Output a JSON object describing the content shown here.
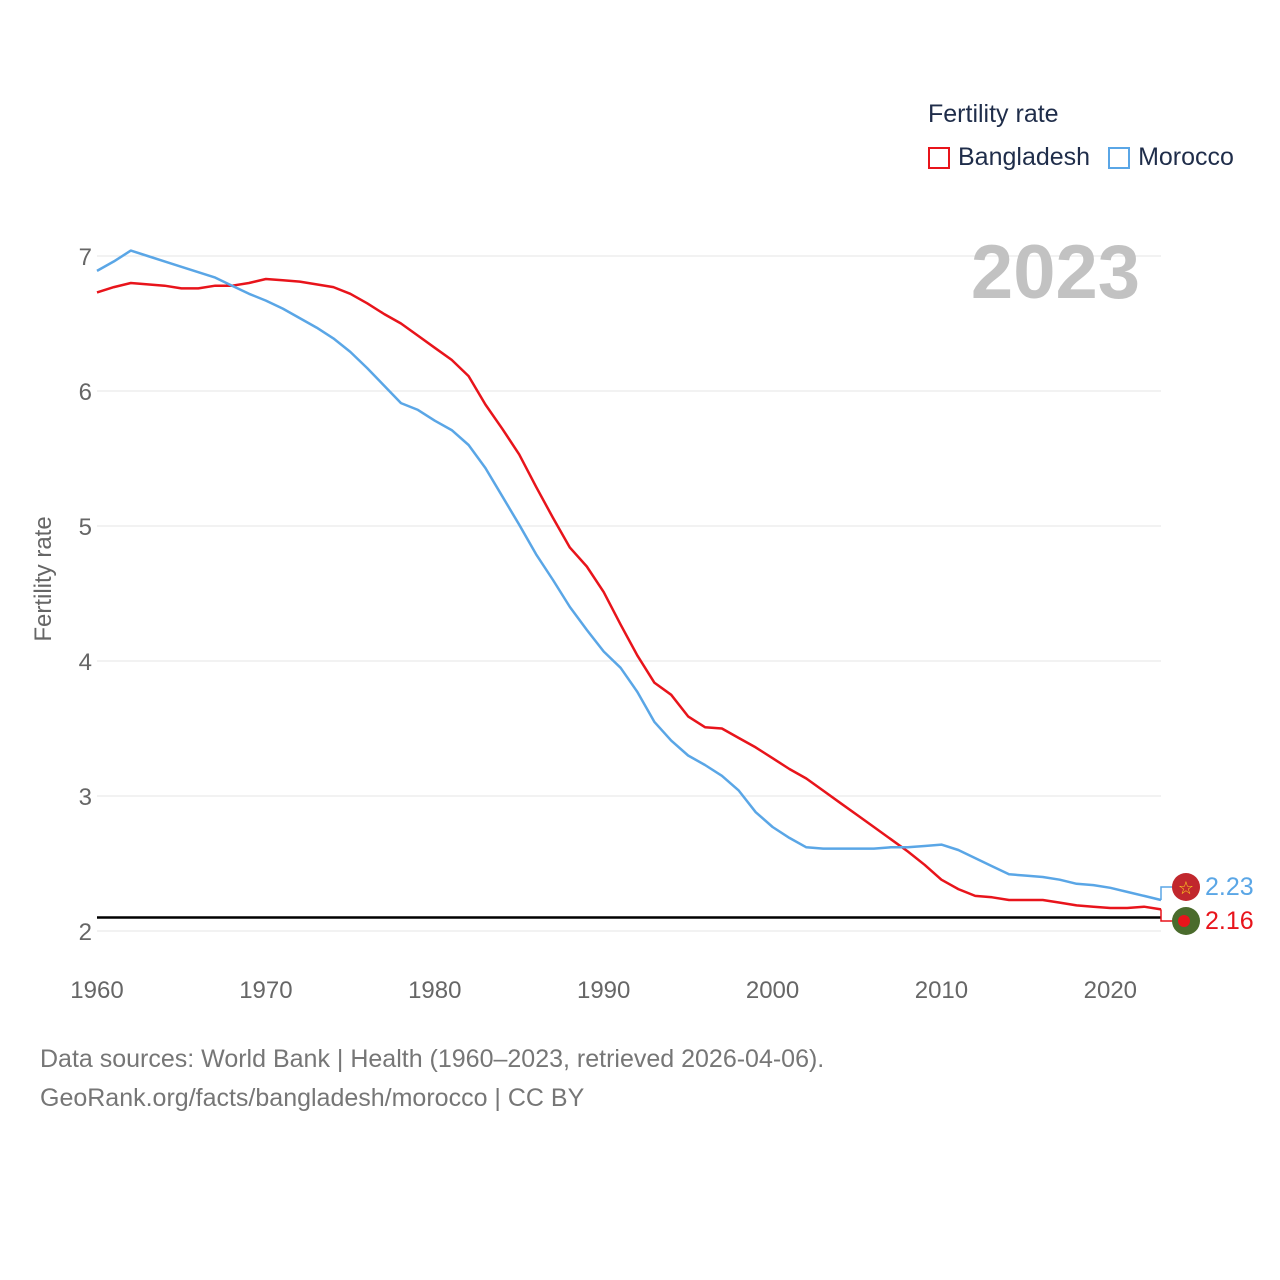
{
  "legend": {
    "title": "Fertility rate",
    "items": [
      {
        "label": "Bangladesh",
        "color": "#e8141b"
      },
      {
        "label": "Morocco",
        "color": "#5aa6e6"
      }
    ]
  },
  "source": {
    "line1": "Data sources: World Bank | Health (1960–2023, retrieved 2026-04-06).",
    "line2": "GeoRank.org/facts/bangladesh/morocco | CC BY"
  },
  "chart_data": {
    "type": "line",
    "title": "Fertility rate",
    "year_label": "2023",
    "xlabel": "",
    "ylabel": "Fertility rate",
    "xlim": [
      1960,
      2023
    ],
    "ylim": [
      2,
      7
    ],
    "xticks": [
      1960,
      1970,
      1980,
      1990,
      2000,
      2010,
      2020
    ],
    "yticks": [
      2,
      3,
      4,
      5,
      6,
      7
    ],
    "reference_line": 2.1,
    "reference_color": "#000000",
    "grid": true,
    "legend_position": "top-right",
    "x": [
      1960,
      1961,
      1962,
      1963,
      1964,
      1965,
      1966,
      1967,
      1968,
      1969,
      1970,
      1971,
      1972,
      1973,
      1974,
      1975,
      1976,
      1977,
      1978,
      1979,
      1980,
      1981,
      1982,
      1983,
      1984,
      1985,
      1986,
      1987,
      1988,
      1989,
      1990,
      1991,
      1992,
      1993,
      1994,
      1995,
      1996,
      1997,
      1998,
      1999,
      2000,
      2001,
      2002,
      2003,
      2004,
      2005,
      2006,
      2007,
      2008,
      2009,
      2010,
      2011,
      2012,
      2013,
      2014,
      2015,
      2016,
      2017,
      2018,
      2019,
      2020,
      2021,
      2022,
      2023
    ],
    "series": [
      {
        "name": "Bangladesh",
        "color": "#e8141b",
        "end_label": "2.16",
        "values": [
          6.73,
          6.77,
          6.8,
          6.79,
          6.78,
          6.76,
          6.76,
          6.78,
          6.78,
          6.8,
          6.83,
          6.82,
          6.81,
          6.79,
          6.77,
          6.72,
          6.65,
          6.57,
          6.5,
          6.41,
          6.32,
          6.23,
          6.11,
          5.9,
          5.72,
          5.53,
          5.29,
          5.06,
          4.84,
          4.7,
          4.51,
          4.27,
          4.04,
          3.84,
          3.75,
          3.59,
          3.51,
          3.5,
          3.43,
          3.36,
          3.28,
          3.2,
          3.13,
          3.04,
          2.95,
          2.86,
          2.77,
          2.68,
          2.59,
          2.49,
          2.38,
          2.31,
          2.26,
          2.25,
          2.23,
          2.23,
          2.23,
          2.21,
          2.19,
          2.18,
          2.17,
          2.17,
          2.18,
          2.16
        ]
      },
      {
        "name": "Morocco",
        "color": "#5aa6e6",
        "end_label": "2.23",
        "values": [
          6.89,
          6.96,
          7.04,
          7.0,
          6.96,
          6.92,
          6.88,
          6.84,
          6.78,
          6.72,
          6.67,
          6.61,
          6.54,
          6.47,
          6.39,
          6.29,
          6.17,
          6.04,
          5.91,
          5.86,
          5.78,
          5.71,
          5.6,
          5.43,
          5.22,
          5.01,
          4.79,
          4.6,
          4.4,
          4.23,
          4.07,
          3.95,
          3.77,
          3.55,
          3.41,
          3.3,
          3.23,
          3.15,
          3.04,
          2.88,
          2.77,
          2.69,
          2.62,
          2.61,
          2.61,
          2.61,
          2.61,
          2.62,
          2.62,
          2.63,
          2.64,
          2.6,
          2.54,
          2.48,
          2.42,
          2.41,
          2.4,
          2.38,
          2.35,
          2.34,
          2.32,
          2.29,
          2.26,
          2.23
        ]
      }
    ]
  }
}
